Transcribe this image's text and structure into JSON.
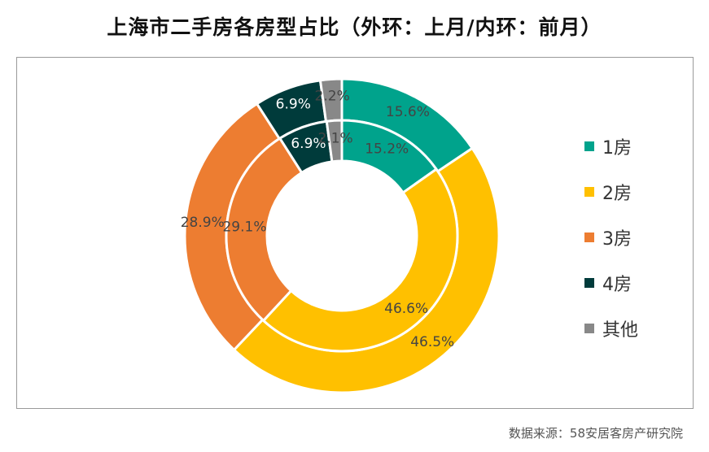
{
  "title": "上海市二手房各房型占比（外环：上月/内环：前月）",
  "source": "数据来源：58安居客房产研究院",
  "colors": {
    "1房": "#00A38C",
    "2房": "#FFC000",
    "3房": "#ED7D31",
    "4房": "#003B3B",
    "其他": "#888888"
  },
  "chart_data": {
    "type": "pie",
    "subtype": "donut",
    "title": "上海市二手房各房型占比（外环：上月/内环：前月）",
    "categories": [
      "1房",
      "2房",
      "3房",
      "4房",
      "其他"
    ],
    "series": [
      {
        "name": "上月",
        "ring": "outer",
        "values": [
          15.6,
          46.5,
          28.9,
          6.9,
          2.2
        ],
        "labels": [
          "15.6%",
          "46.5%",
          "28.9%",
          "6.9%",
          "2.2%"
        ]
      },
      {
        "name": "前月",
        "ring": "inner",
        "values": [
          15.2,
          46.6,
          29.1,
          6.9,
          2.1
        ],
        "labels": [
          "15.2%",
          "46.6%",
          "29.1%",
          "6.9%",
          "2.1%"
        ]
      }
    ],
    "legend_position": "right"
  }
}
